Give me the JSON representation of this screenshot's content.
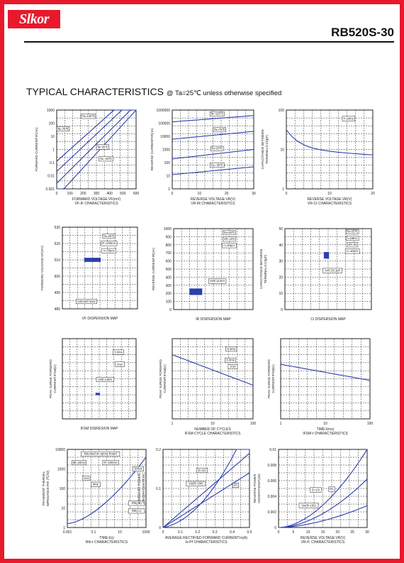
{
  "brand": {
    "logo_text": "Slkor",
    "part_number": "RB520S-30"
  },
  "heading": {
    "main": "TYPICAL CHARACTERISTICS",
    "condition": "@ Ta=25℃ unless otherwise specified"
  },
  "colors": {
    "frame": "#e8192c",
    "curve": "#2b3fae",
    "grid": "#222222"
  },
  "charts": [
    {
      "type": "line",
      "ylabel": "FORWARD CURRENT:IF(mA)",
      "xlabel": "FORWARD VOLTAGE:VF(mV)",
      "caption": "VF-IF CHARACTERISTICS",
      "xticks": [
        "0",
        "100",
        "200",
        "300",
        "400",
        "500",
        "600"
      ],
      "yticks": [
        "1000",
        "100",
        "10",
        "1",
        "0.1",
        "0.01",
        "0.001"
      ],
      "annotations": [
        "Ta=125℃",
        "Ta=75℃",
        "Ta=25℃",
        "Ta=-25℃"
      ]
    },
    {
      "type": "line",
      "ylabel": "REVERSE CURRENT:IR(nA)",
      "xlabel": "REVERSE VOLTAGE:VR(V)",
      "caption": "VR-IR CHARACTERISTICS",
      "xticks": [
        "0",
        "10",
        "20",
        "30"
      ],
      "yticks": [
        "1000000",
        "100000",
        "10000",
        "1000",
        "100",
        "10",
        "1"
      ],
      "annotations": [
        "Ta=125℃",
        "Ta=75℃",
        "Ta=25℃",
        "Ta=-25℃"
      ]
    },
    {
      "type": "line",
      "ylabel": "CAPACITANCE BETWEEN TERMINALS:Ct(pF)",
      "xlabel": "REVERSE VOLTAGE:VR(V)",
      "caption": "VR-Ct CHARACTERISTICS",
      "xticks": [
        "0",
        "10",
        "20"
      ],
      "yticks": [
        "100",
        "10",
        "1"
      ],
      "annotations": [
        "f=1MHz"
      ]
    },
    {
      "type": "scatter",
      "ylabel": "FORWARD VOLTAGE:VF(mV)",
      "xlabel": "",
      "caption": "VF DISPERSION MAP",
      "xticks": [],
      "yticks": [
        "530",
        "520",
        "510",
        "500",
        "490",
        "480"
      ],
      "annotations": [
        "Ta=25℃",
        "IF=200mA",
        "n=20pcs",
        "AVE:507.6mV"
      ]
    },
    {
      "type": "scatter",
      "ylabel": "REVERSE CURRENT:IR(nA)",
      "xlabel": "",
      "caption": "IR DISPERSION MAP",
      "xticks": [],
      "yticks": [
        "1000",
        "900",
        "800",
        "700",
        "600",
        "500",
        "400",
        "300",
        "200",
        "100",
        "0"
      ],
      "annotations": [
        "Ta=25℃",
        "VR=10V",
        "n=30pcs",
        "AVE:114nA"
      ]
    },
    {
      "type": "scatter",
      "ylabel": "CAPACITANCE BETWEEN TERMINALS:Ct(pF)",
      "xlabel": "",
      "caption": "Ct DISPERSION MAP",
      "xticks": [],
      "yticks": [
        "50",
        "40",
        "30",
        "20",
        "10",
        "0"
      ],
      "annotations": [
        "Ta=25℃",
        "f=1MHz",
        "VR=0V",
        "n=10pcs",
        "AVE:26.3pF"
      ]
    },
    {
      "type": "scatter",
      "ylabel": "PEAK SURGE FORWARD CURRENT:IFSM(A)",
      "xlabel": "",
      "caption": "IFSM DISRESION MAP",
      "xticks": [],
      "yticks": [],
      "annotations": [
        "8.3ms",
        "1cyc",
        "AVE:3.80A"
      ]
    },
    {
      "type": "line",
      "ylabel": "PEAK SURGE FORWARD CURRENT:IFSM(A)",
      "xlabel": "NUMBER OF CYCLES",
      "caption": "IFSM-CYCLE CHARACTERISTICS",
      "xticks": [
        "1",
        "10",
        "100"
      ],
      "yticks": [],
      "annotations": [
        "8.3ms",
        "8.3ms",
        "1cyc"
      ]
    },
    {
      "type": "line",
      "ylabel": "PEAK SURGE FORWARD CURRENT:IFSM(A)",
      "xlabel": "TIME:t(ms)",
      "caption": "IFSM-t CHARACTERISTICS",
      "xticks": [
        "1",
        "10",
        "100"
      ],
      "yticks": [],
      "annotations": []
    },
    {
      "type": "line",
      "ylabel": "TRANSIENT THERMAL IMPEDANCE:Rth (℃/W)",
      "xlabel": "TIME:t(s)",
      "caption": "Rth-t CHARACTERISTICS",
      "xticks": [
        "0.001",
        "0.1",
        "10",
        "1000"
      ],
      "yticks": [
        "10000",
        "1000",
        "100",
        "10",
        "1"
      ],
      "annotations": [
        "Mounted on epoxy board",
        "IM=10mA",
        "IF=100mA",
        "1ms",
        "time",
        "300us",
        "Rth(j-a)",
        "Rth(j-c)"
      ]
    },
    {
      "type": "line",
      "ylabel": "FORWARD POWER DISSIPATION:Pf(W)",
      "xlabel": "AVERAGE RECTIFIED FORWARD CURRENT:Io(A)",
      "caption": "Io-Pf CHARACTERISTICS",
      "xticks": [
        "0",
        "0.1",
        "0.2",
        "0.3",
        "0.4",
        "0.5"
      ],
      "yticks": [
        "0.2",
        "0.1",
        "0"
      ],
      "annotations": [
        "D=1/2",
        "Sin(θ=180)",
        "DC"
      ]
    },
    {
      "type": "line",
      "ylabel": "REVERSE POWER DISSIPATION:Pᵣ(W)",
      "xlabel": "REVERSE VOLTAGE:VR(V)",
      "caption": "VR-Pᵣ CHARACTERISTICS",
      "xticks": [
        "0",
        "5",
        "10",
        "15",
        "20",
        "25",
        "30"
      ],
      "yticks": [
        "0.01",
        "0.008",
        "0.006",
        "0.004",
        "0.002",
        "0"
      ],
      "annotations": [
        "D=1/2",
        "Sin(θ=180)",
        "DC"
      ]
    }
  ]
}
